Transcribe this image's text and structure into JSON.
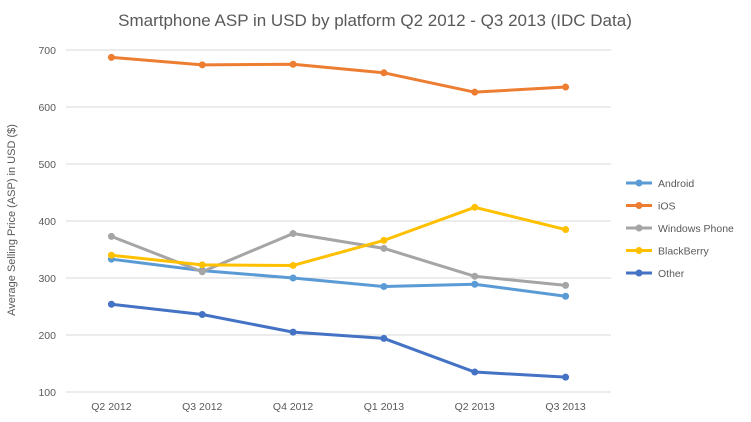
{
  "chart_data": {
    "type": "line",
    "title": "Smartphone ASP in  USD by platform Q2 2012 - Q3 2013 (IDC Data)",
    "xlabel": "",
    "ylabel": "Average Selling Price (ASP) in USD ($)",
    "categories": [
      "Q2 2012",
      "Q3 2012",
      "Q4 2012",
      "Q1 2013",
      "Q2 2013",
      "Q3 2013"
    ],
    "ylim": [
      100,
      700
    ],
    "yticks": [
      100,
      200,
      300,
      400,
      500,
      600,
      700
    ],
    "grid": true,
    "legend_position": "right",
    "series": [
      {
        "name": "Android",
        "color": "#5B9BD5",
        "values": [
          333,
          313,
          300,
          285,
          289,
          268
        ]
      },
      {
        "name": "iOS",
        "color": "#ED7D31",
        "values": [
          687,
          674,
          675,
          660,
          626,
          635
        ]
      },
      {
        "name": "Windows Phone",
        "color": "#A5A5A5",
        "values": [
          373,
          311,
          378,
          352,
          303,
          287
        ]
      },
      {
        "name": "BlackBerry",
        "color": "#FFC000",
        "values": [
          340,
          323,
          322,
          366,
          424,
          385
        ]
      },
      {
        "name": "Other",
        "color": "#4472C4",
        "values": [
          254,
          236,
          205,
          194,
          135,
          126
        ]
      }
    ]
  }
}
